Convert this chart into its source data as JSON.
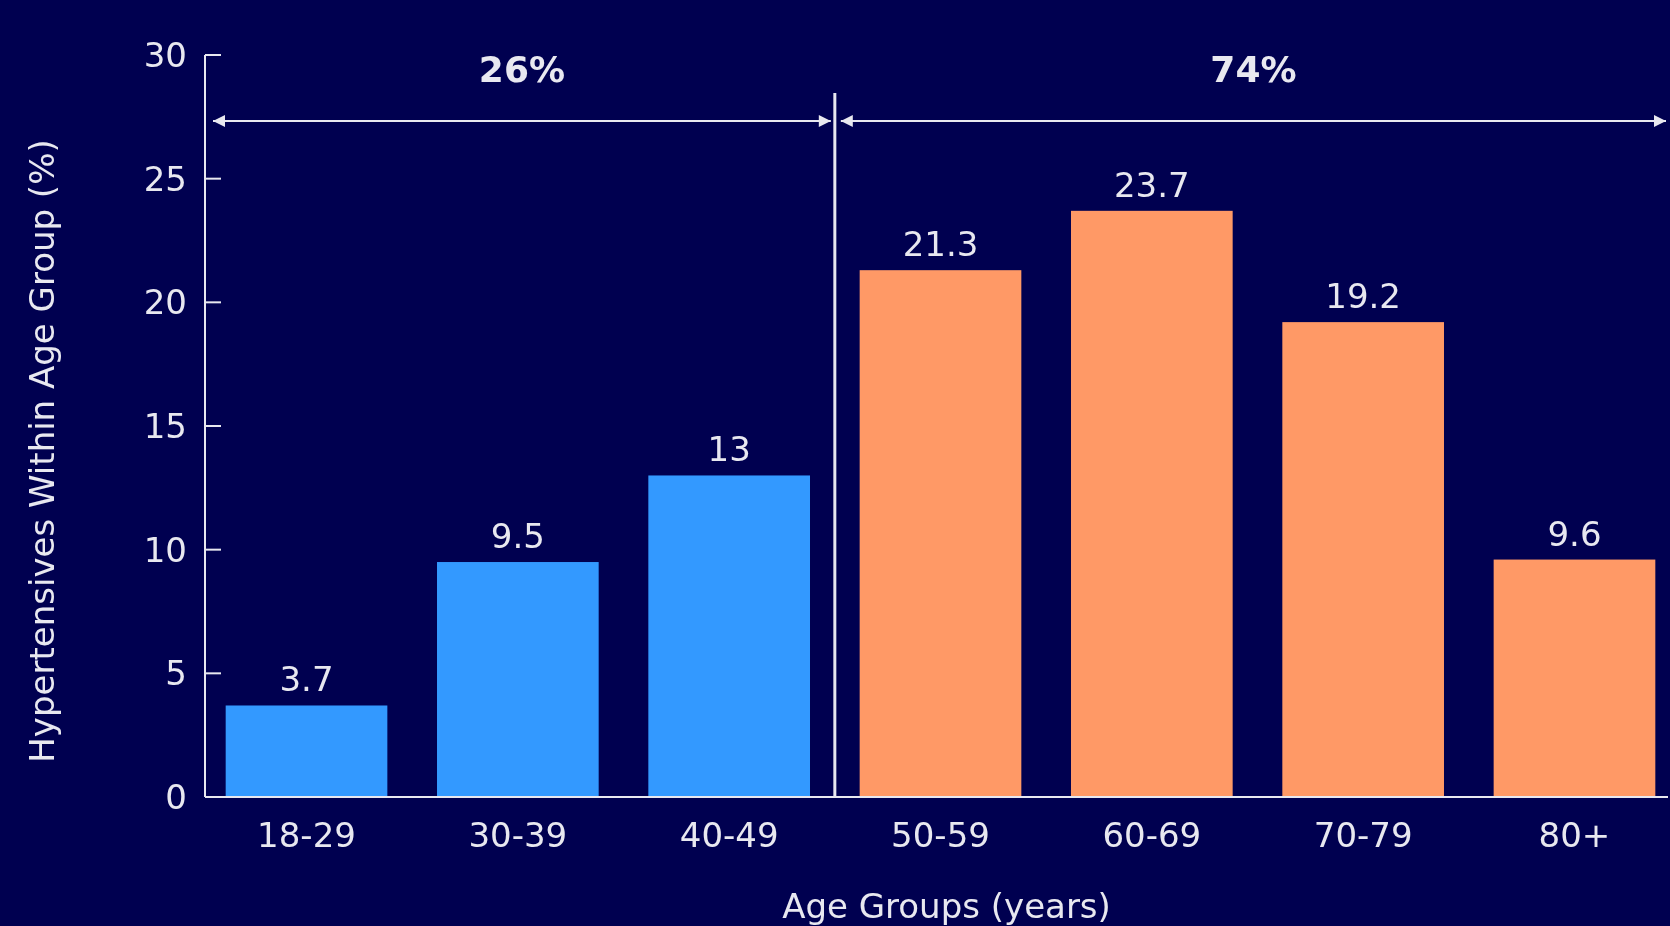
{
  "chart_data": {
    "type": "bar",
    "xlabel": "Age Groups (years)",
    "ylabel": "Hypertensives Within Age Group (%)",
    "categories": [
      "18-29",
      "30-39",
      "40-49",
      "50-59",
      "60-69",
      "70-79",
      "80+"
    ],
    "values": [
      3.7,
      9.5,
      13,
      21.3,
      23.7,
      19.2,
      9.6
    ],
    "colors": [
      "#3399ff",
      "#3399ff",
      "#3399ff",
      "#ff9966",
      "#ff9966",
      "#ff9966",
      "#ff9966"
    ],
    "ylim": [
      0,
      30
    ],
    "yticks": [
      0,
      5,
      10,
      15,
      20,
      25,
      30
    ],
    "data_labels": true,
    "annotations": [
      "26%",
      "74%"
    ]
  }
}
